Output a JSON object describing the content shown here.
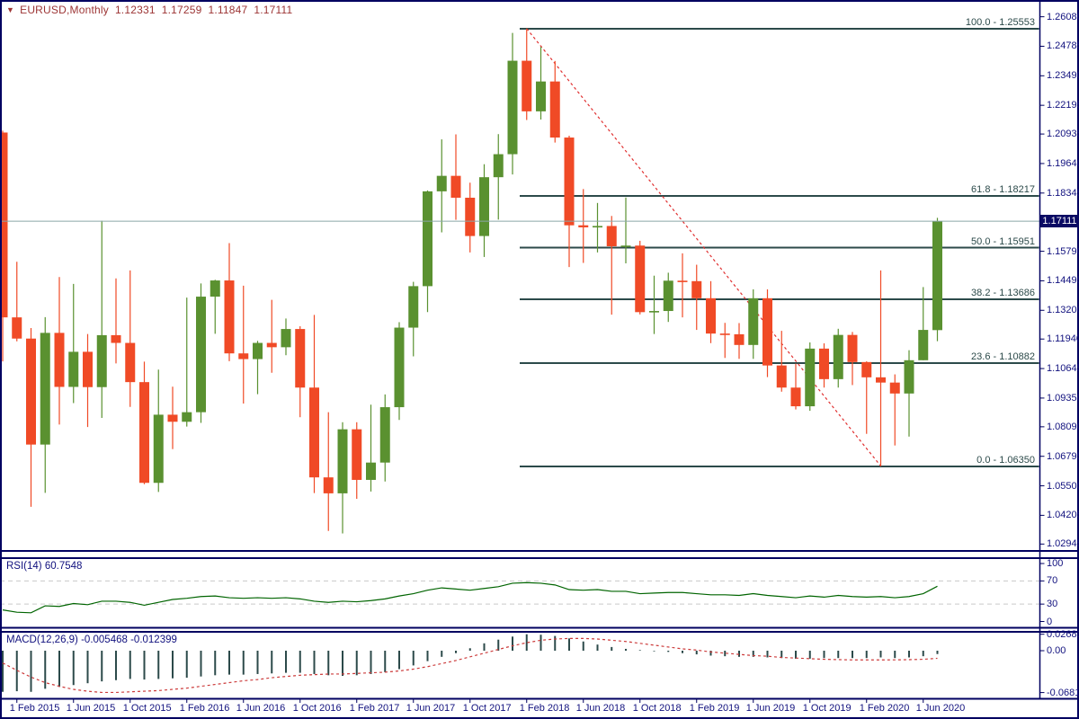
{
  "header": {
    "arrow": "▼",
    "symbol": "EURUSD,Monthly",
    "open": "1.12331",
    "high": "1.17259",
    "low": "1.11847",
    "close": "1.17111"
  },
  "colors": {
    "bull": "#5a9130",
    "bear": "#f04a26",
    "fib_line": "#2c4a4a",
    "trendline": "#e03030",
    "rsi_line": "#006400",
    "rsi_level_dash": "#c9c9c9",
    "macd_hist": "#2c4a4a",
    "macd_signal": "#cc3b3b",
    "axis_text": "#10107e",
    "header_text": "#9c3434",
    "border": "#000060",
    "price_line": "#8aa7a7",
    "price_tag_bg": "#0a0a63",
    "price_tag_text": "#ffffff"
  },
  "price_axis": {
    "current": "1.17111",
    "ticks": [
      "1.26080",
      "1.24785",
      "1.23490",
      "1.22195",
      "1.20935",
      "1.19640",
      "1.18345",
      "1.15790",
      "1.14495",
      "1.13200",
      "1.11940",
      "1.10645",
      "1.09350",
      "1.08090",
      "1.06795",
      "1.05500",
      "1.04205",
      "1.02945"
    ]
  },
  "chart_data": {
    "type": "candlestick",
    "symbol": "EURUSD",
    "timeframe": "Monthly",
    "current_price": 1.17111,
    "candle_format": [
      "time",
      "open",
      "high",
      "low",
      "close"
    ],
    "candles": [
      [
        "2015-01",
        1.21,
        1.2108,
        1.1096,
        1.1289
      ],
      [
        "2015-02",
        1.1289,
        1.1533,
        1.1184,
        1.1196
      ],
      [
        "2015-03",
        1.1196,
        1.1242,
        1.0458,
        1.0731
      ],
      [
        "2015-04",
        1.0731,
        1.129,
        1.0519,
        1.1221
      ],
      [
        "2015-05",
        1.1221,
        1.1466,
        1.0819,
        1.0984
      ],
      [
        "2015-06",
        1.0984,
        1.1436,
        1.0913,
        1.1138
      ],
      [
        "2015-07",
        1.1138,
        1.1216,
        1.0808,
        1.0983
      ],
      [
        "2015-08",
        1.0983,
        1.1713,
        1.0848,
        1.1211
      ],
      [
        "2015-09",
        1.1211,
        1.146,
        1.1087,
        1.1177
      ],
      [
        "2015-10",
        1.1177,
        1.1495,
        1.0896,
        1.1005
      ],
      [
        "2015-11",
        1.1005,
        1.1095,
        1.0557,
        1.0563
      ],
      [
        "2015-12",
        1.0563,
        1.106,
        1.0523,
        1.0862
      ],
      [
        "2016-01",
        1.0862,
        1.0985,
        1.0711,
        1.0831
      ],
      [
        "2016-02",
        1.0831,
        1.1376,
        1.081,
        1.0873
      ],
      [
        "2016-03",
        1.0873,
        1.1438,
        1.0826,
        1.138
      ],
      [
        "2016-04",
        1.138,
        1.1454,
        1.1217,
        1.1451
      ],
      [
        "2016-05",
        1.1451,
        1.1615,
        1.1097,
        1.1131
      ],
      [
        "2016-06",
        1.1131,
        1.1428,
        1.0911,
        1.1106
      ],
      [
        "2016-07",
        1.1106,
        1.1186,
        1.0952,
        1.1177
      ],
      [
        "2016-08",
        1.1177,
        1.1366,
        1.1046,
        1.1158
      ],
      [
        "2016-09",
        1.1158,
        1.1284,
        1.1123,
        1.1238
      ],
      [
        "2016-10",
        1.1238,
        1.125,
        1.0851,
        1.0981
      ],
      [
        "2016-11",
        1.0981,
        1.13,
        1.0518,
        1.0587
      ],
      [
        "2016-12",
        1.0587,
        1.0873,
        1.0352,
        1.0517
      ],
      [
        "2017-01",
        1.0517,
        1.0829,
        1.0341,
        1.0798
      ],
      [
        "2017-02",
        1.0798,
        1.0829,
        1.0493,
        1.0576
      ],
      [
        "2017-03",
        1.0576,
        1.0906,
        1.0525,
        1.0652
      ],
      [
        "2017-04",
        1.0652,
        1.0951,
        1.0569,
        1.0895
      ],
      [
        "2017-05",
        1.0895,
        1.1268,
        1.0839,
        1.1244
      ],
      [
        "2017-06",
        1.1244,
        1.1445,
        1.1118,
        1.1426
      ],
      [
        "2017-07",
        1.1426,
        1.1846,
        1.1312,
        1.1842
      ],
      [
        "2017-08",
        1.1842,
        1.207,
        1.1662,
        1.191
      ],
      [
        "2017-09",
        1.191,
        1.2092,
        1.1717,
        1.1814
      ],
      [
        "2017-10",
        1.1814,
        1.188,
        1.1574,
        1.1646
      ],
      [
        "2017-11",
        1.1646,
        1.1961,
        1.1554,
        1.1904
      ],
      [
        "2017-12",
        1.1904,
        1.2093,
        1.1718,
        1.2005
      ],
      [
        "2018-01",
        1.2005,
        1.2537,
        1.1916,
        1.2415
      ],
      [
        "2018-02",
        1.2415,
        1.2556,
        1.2155,
        1.2193
      ],
      [
        "2018-03",
        1.2193,
        1.2476,
        1.2157,
        1.2324
      ],
      [
        "2018-04",
        1.2324,
        1.2414,
        1.2056,
        1.2078
      ],
      [
        "2018-05",
        1.2078,
        1.2086,
        1.151,
        1.1693
      ],
      [
        "2018-06",
        1.1693,
        1.1852,
        1.1528,
        1.1684
      ],
      [
        "2018-07",
        1.1684,
        1.1791,
        1.1574,
        1.169
      ],
      [
        "2018-08",
        1.169,
        1.1734,
        1.1301,
        1.1601
      ],
      [
        "2018-09",
        1.1601,
        1.1815,
        1.1526,
        1.1604
      ],
      [
        "2018-10",
        1.1604,
        1.1625,
        1.1302,
        1.1312
      ],
      [
        "2018-11",
        1.1312,
        1.1472,
        1.1216,
        1.1317
      ],
      [
        "2018-12",
        1.1317,
        1.1485,
        1.1269,
        1.145
      ],
      [
        "2019-01",
        1.145,
        1.157,
        1.1289,
        1.1448
      ],
      [
        "2019-02",
        1.1448,
        1.152,
        1.1234,
        1.1373
      ],
      [
        "2019-03",
        1.1373,
        1.1448,
        1.1176,
        1.1218
      ],
      [
        "2019-04",
        1.1218,
        1.1265,
        1.1111,
        1.1215
      ],
      [
        "2019-05",
        1.1215,
        1.1264,
        1.1107,
        1.1168
      ],
      [
        "2019-06",
        1.1168,
        1.1412,
        1.1107,
        1.1373
      ],
      [
        "2019-07",
        1.1373,
        1.1412,
        1.1027,
        1.1078
      ],
      [
        "2019-08",
        1.1078,
        1.123,
        1.0963,
        1.0981
      ],
      [
        "2019-09",
        1.0981,
        1.1086,
        1.0885,
        1.0899
      ],
      [
        "2019-10",
        1.0899,
        1.1179,
        1.0879,
        1.1152
      ],
      [
        "2019-11",
        1.1152,
        1.1175,
        1.0981,
        1.1018
      ],
      [
        "2019-12",
        1.1018,
        1.1239,
        1.0981,
        1.1212
      ],
      [
        "2020-01",
        1.1212,
        1.1225,
        1.0992,
        1.1093
      ],
      [
        "2020-02",
        1.1093,
        1.1096,
        1.0778,
        1.1026
      ],
      [
        "2020-03",
        1.1026,
        1.1495,
        1.0636,
        1.1003
      ],
      [
        "2020-04",
        1.1003,
        1.1039,
        1.0727,
        1.0955
      ],
      [
        "2020-05",
        1.0955,
        1.1145,
        1.0766,
        1.1101
      ],
      [
        "2020-06",
        1.1101,
        1.1422,
        1.1101,
        1.1234
      ],
      [
        "2020-07",
        1.12331,
        1.17259,
        1.11847,
        1.17111
      ]
    ],
    "x_axis_labels": [
      {
        "i": 1,
        "label": "1 Feb 2015"
      },
      {
        "i": 5,
        "label": "1 Jun 2015"
      },
      {
        "i": 9,
        "label": "1 Oct 2015"
      },
      {
        "i": 13,
        "label": "1 Feb 2016"
      },
      {
        "i": 17,
        "label": "1 Jun 2016"
      },
      {
        "i": 21,
        "label": "1 Oct 2016"
      },
      {
        "i": 25,
        "label": "1 Feb 2017"
      },
      {
        "i": 29,
        "label": "1 Jun 2017"
      },
      {
        "i": 33,
        "label": "1 Oct 2017"
      },
      {
        "i": 37,
        "label": "1 Feb 2018"
      },
      {
        "i": 41,
        "label": "1 Jun 2018"
      },
      {
        "i": 45,
        "label": "1 Oct 2018"
      },
      {
        "i": 49,
        "label": "1 Feb 2019"
      },
      {
        "i": 53,
        "label": "1 Jun 2019"
      },
      {
        "i": 57,
        "label": "1 Oct 2019"
      },
      {
        "i": 61,
        "label": "1 Feb 2020"
      },
      {
        "i": 65,
        "label": "1 Jun 2020"
      }
    ],
    "fibonacci": [
      {
        "price": 1.25553,
        "label": "100.0 - 1.25553"
      },
      {
        "price": 1.18217,
        "label": "61.8 - 1.18217"
      },
      {
        "price": 1.15951,
        "label": "50.0 - 1.15951"
      },
      {
        "price": 1.13686,
        "label": "38.2 - 1.13686"
      },
      {
        "price": 1.10882,
        "label": "23.6 - 1.10882"
      },
      {
        "price": 1.0635,
        "label": "0.0 - 1.06350"
      }
    ],
    "trendline": {
      "from_index": 37,
      "from_price": 1.2556,
      "to_index": 62,
      "to_price": 1.0637
    },
    "rsi": {
      "name": "RSI(14)",
      "value": "60.7548",
      "scale": [
        {
          "v": 100,
          "label": "100"
        },
        {
          "v": 70,
          "label": "70"
        },
        {
          "v": 30,
          "label": "30"
        },
        {
          "v": 0,
          "label": "0"
        }
      ],
      "dashed_levels": [
        70,
        30
      ],
      "values": [
        20,
        16,
        15,
        27,
        26,
        31,
        29,
        35,
        35,
        33,
        28,
        33,
        38,
        40,
        43,
        44,
        41,
        40,
        41,
        40,
        41,
        39,
        35,
        33,
        35,
        34,
        36,
        39,
        44,
        48,
        54,
        58,
        56,
        54,
        57,
        60,
        66,
        67,
        66,
        63,
        55,
        54,
        55,
        52,
        52,
        48,
        49,
        50,
        50,
        48,
        46,
        46,
        45,
        48,
        45,
        43,
        41,
        44,
        42,
        45,
        43,
        42,
        43,
        41,
        43,
        48,
        60.75
      ]
    },
    "macd": {
      "name": "MACD(12,26,9)",
      "main_value": "-0.005468",
      "signal_value": "-0.012399",
      "scale": [
        {
          "v": 0.026816,
          "label": "0.026816"
        },
        {
          "v": 0,
          "label": "0.00"
        },
        {
          "v": -0.068197,
          "label": "-0.068197"
        }
      ],
      "histogram": [
        -0.067,
        -0.066,
        -0.067,
        -0.062,
        -0.059,
        -0.056,
        -0.053,
        -0.05,
        -0.048,
        -0.046,
        -0.047,
        -0.046,
        -0.045,
        -0.044,
        -0.042,
        -0.04,
        -0.039,
        -0.039,
        -0.038,
        -0.037,
        -0.036,
        -0.036,
        -0.038,
        -0.04,
        -0.041,
        -0.04,
        -0.038,
        -0.035,
        -0.03,
        -0.024,
        -0.017,
        -0.01,
        -0.004,
        0.004,
        0.012,
        0.018,
        0.023,
        0.0268,
        0.026,
        0.024,
        0.02,
        0.015,
        0.01,
        0.006,
        0.003,
        0.001,
        -0.001,
        -0.002,
        -0.004,
        -0.006,
        -0.008,
        -0.009,
        -0.01,
        -0.01,
        -0.011,
        -0.012,
        -0.013,
        -0.013,
        -0.012,
        -0.012,
        -0.012,
        -0.012,
        -0.011,
        -0.012,
        -0.011,
        -0.009,
        -0.005468
      ],
      "signal": [
        -0.02,
        -0.032,
        -0.043,
        -0.052,
        -0.058,
        -0.063,
        -0.066,
        -0.068,
        -0.068,
        -0.067,
        -0.066,
        -0.065,
        -0.063,
        -0.061,
        -0.058,
        -0.055,
        -0.052,
        -0.049,
        -0.047,
        -0.044,
        -0.042,
        -0.04,
        -0.039,
        -0.038,
        -0.038,
        -0.037,
        -0.036,
        -0.035,
        -0.033,
        -0.03,
        -0.026,
        -0.021,
        -0.016,
        -0.01,
        -0.004,
        0.002,
        0.008,
        0.013,
        0.017,
        0.019,
        0.02,
        0.02,
        0.019,
        0.017,
        0.015,
        0.012,
        0.009,
        0.006,
        0.003,
        0.001,
        -0.002,
        -0.004,
        -0.006,
        -0.008,
        -0.009,
        -0.011,
        -0.012,
        -0.013,
        -0.014,
        -0.0145,
        -0.015,
        -0.015,
        -0.015,
        -0.0149,
        -0.0146,
        -0.014,
        -0.012399
      ]
    }
  }
}
